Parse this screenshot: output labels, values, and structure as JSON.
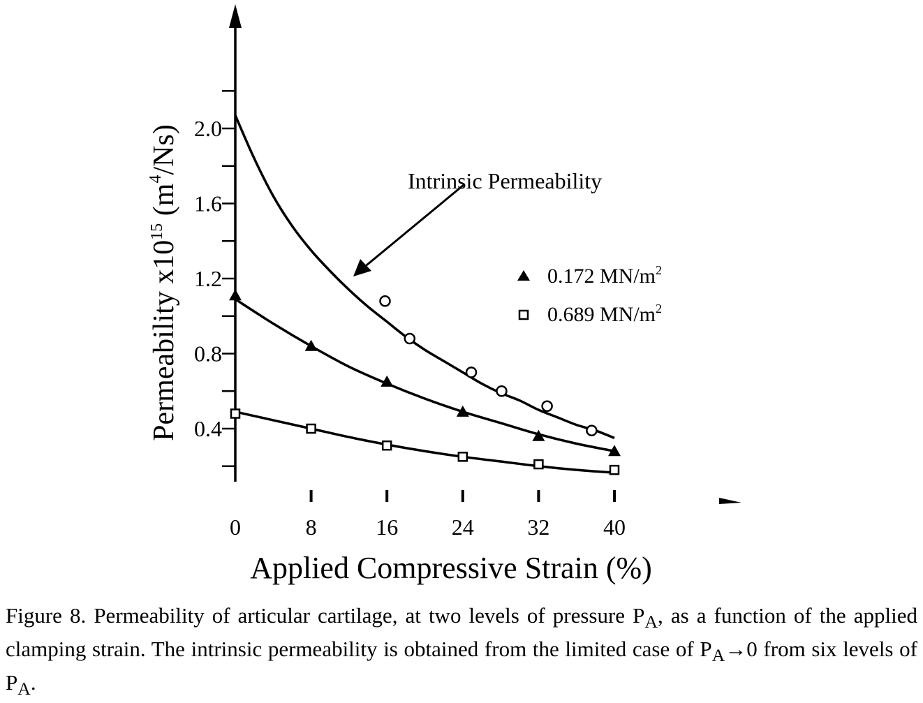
{
  "chart_data": {
    "type": "scatter",
    "xlabel": "Applied Compressive Strain (%)",
    "ylabel_main": "Permeability  x10",
    "ylabel_exp": "15",
    "ylabel_unit_open": " (m",
    "ylabel_unit_exp": "4",
    "ylabel_unit_close": "/Ns)",
    "x_ticks": [
      "0",
      "8",
      "16",
      "24",
      "32",
      "40"
    ],
    "x_tick_values": [
      0,
      8,
      16,
      24,
      32,
      40
    ],
    "y_ticks": [
      "0.4",
      "0.8",
      "1.2",
      "1.6",
      "2.0"
    ],
    "y_tick_values": [
      0.4,
      0.8,
      1.2,
      1.6,
      2.0
    ],
    "xlim": [
      0,
      40
    ],
    "ylim": [
      0.1,
      2.4
    ],
    "grid": false,
    "legend_position": "right",
    "annotation": "Intrinsic Permeability",
    "series": [
      {
        "name": "0.172 MN/m",
        "name_sup": "2",
        "marker": "filled-triangle",
        "x": [
          0,
          8,
          16,
          24,
          32,
          40
        ],
        "y": [
          1.11,
          0.84,
          0.65,
          0.49,
          0.36,
          0.28
        ],
        "fit": [
          [
            0,
            1.09
          ],
          [
            4,
            0.96
          ],
          [
            8,
            0.84
          ],
          [
            12,
            0.73
          ],
          [
            16,
            0.64
          ],
          [
            20,
            0.56
          ],
          [
            24,
            0.49
          ],
          [
            28,
            0.43
          ],
          [
            32,
            0.37
          ],
          [
            36,
            0.32
          ],
          [
            40,
            0.28
          ]
        ]
      },
      {
        "name": "0.689 MN/m",
        "name_sup": "2",
        "marker": "open-square",
        "x": [
          0,
          8,
          16,
          24,
          32,
          40
        ],
        "y": [
          0.48,
          0.4,
          0.31,
          0.25,
          0.21,
          0.18
        ],
        "fit": [
          [
            0,
            0.49
          ],
          [
            4,
            0.445
          ],
          [
            8,
            0.4
          ],
          [
            12,
            0.355
          ],
          [
            16,
            0.315
          ],
          [
            20,
            0.28
          ],
          [
            24,
            0.25
          ],
          [
            28,
            0.225
          ],
          [
            32,
            0.2
          ],
          [
            36,
            0.18
          ],
          [
            40,
            0.165
          ]
        ]
      },
      {
        "name": "Intrinsic",
        "marker": "open-circle",
        "x": [
          15.8,
          18.4,
          24.9,
          28.1,
          32.9,
          37.6
        ],
        "y": [
          1.08,
          0.88,
          0.7,
          0.6,
          0.52,
          0.39
        ],
        "fit": [
          [
            0,
            2.07
          ],
          [
            2,
            1.84
          ],
          [
            4,
            1.64
          ],
          [
            6,
            1.48
          ],
          [
            8,
            1.35
          ],
          [
            10,
            1.24
          ],
          [
            12,
            1.14
          ],
          [
            14,
            1.05
          ],
          [
            16,
            0.97
          ],
          [
            18,
            0.89
          ],
          [
            20,
            0.82
          ],
          [
            22,
            0.76
          ],
          [
            24,
            0.7
          ],
          [
            26,
            0.64
          ],
          [
            28,
            0.59
          ],
          [
            30,
            0.55
          ],
          [
            32,
            0.5
          ],
          [
            34,
            0.46
          ],
          [
            36,
            0.42
          ],
          [
            38,
            0.39
          ],
          [
            40,
            0.35
          ]
        ]
      }
    ]
  },
  "caption": {
    "part1": "Figure 8. Permeability of articular cartilage, at two levels of pressure P",
    "sub1": "A",
    "part2": ", as a function of the applied clamping strain.  The intrinsic permeability is obtained from the limited case of P",
    "sub2": "A",
    "arrow": "→",
    "part3": "0 from six levels of P",
    "sub3": "A",
    "part4": "."
  }
}
